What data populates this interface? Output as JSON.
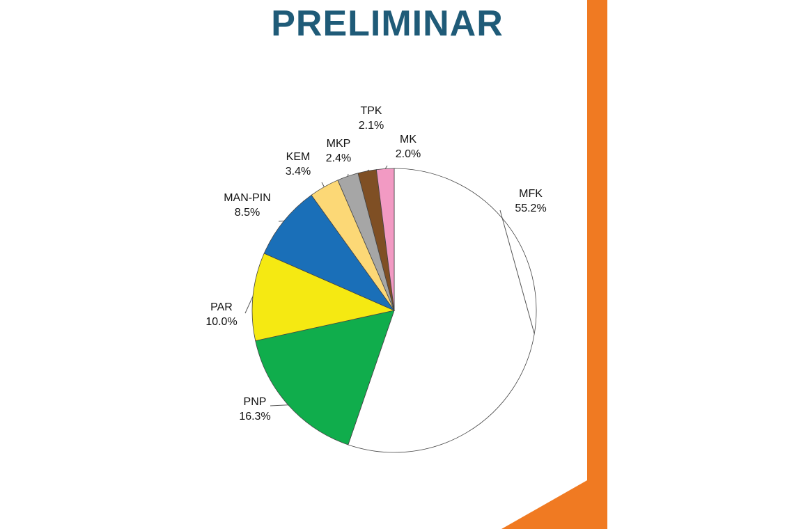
{
  "page": {
    "title": "PRELIMINAR",
    "title_color": "#1f5b78",
    "accent_color": "#f07a22"
  },
  "chart_data": {
    "type": "pie",
    "title": "PRELIMINAR",
    "slices": [
      {
        "name": "MFK",
        "value": 55.2,
        "label": "55.2%",
        "color": "#ffffff"
      },
      {
        "name": "PNP",
        "value": 16.3,
        "label": "16.3%",
        "color": "#10ad4c"
      },
      {
        "name": "PAR",
        "value": 10.0,
        "label": "10.0%",
        "color": "#f5e912"
      },
      {
        "name": "MAN-PIN",
        "value": 8.5,
        "label": "8.5%",
        "color": "#1a6fb8"
      },
      {
        "name": "KEM",
        "value": 3.4,
        "label": "3.4%",
        "color": "#fcd876"
      },
      {
        "name": "MKP",
        "value": 2.4,
        "label": "2.4%",
        "color": "#a6a6a6"
      },
      {
        "name": "TPK",
        "value": 2.1,
        "label": "2.1%",
        "color": "#7f4f24"
      },
      {
        "name": "MK",
        "value": 2.0,
        "label": "2.0%",
        "color": "#f29ac3"
      }
    ]
  }
}
